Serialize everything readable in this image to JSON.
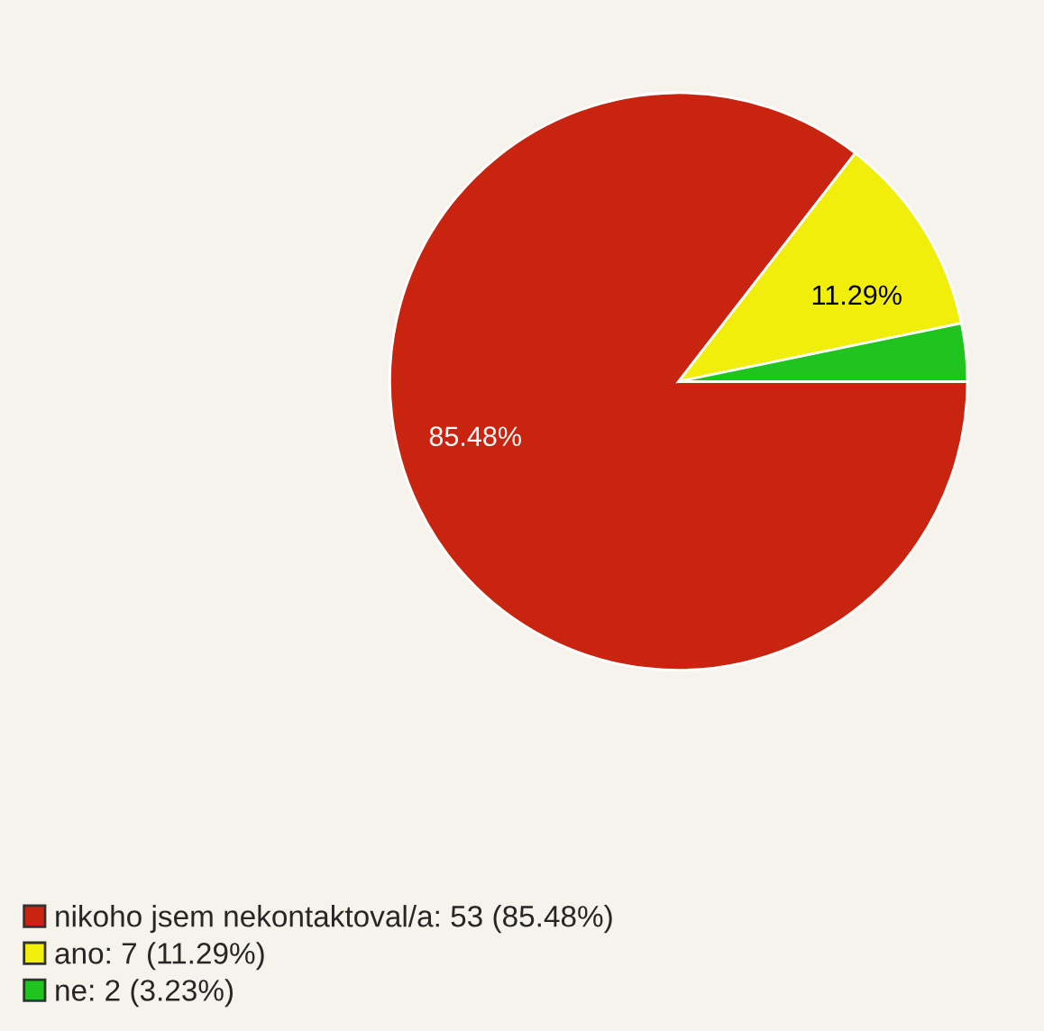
{
  "chart_data": {
    "type": "pie",
    "categories": [
      "nikoho jsem nekontaktoval/a: 53 (85.48%)",
      "ano: 7 (11.29%)",
      "ne: 2 (3.23%)"
    ],
    "values": [
      85.48,
      11.29,
      3.23
    ],
    "colors": [
      "#c8240f",
      "#f2ee0c",
      "#1fc41f"
    ],
    "value_labels": [
      "85.48%",
      "11.29%",
      null
    ],
    "legend": "bottom left"
  }
}
